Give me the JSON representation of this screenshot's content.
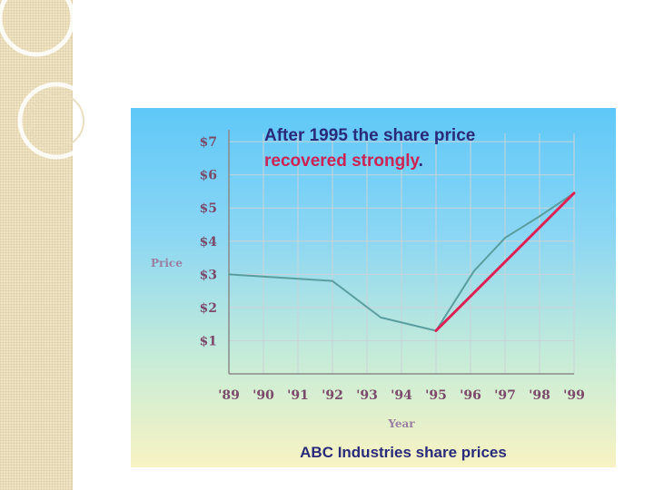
{
  "chart_data": {
    "type": "line",
    "title": [
      "After 1995 the share price",
      "recovered strongly",
      "."
    ],
    "caption": "ABC Industries share prices",
    "xlabel": "Year",
    "ylabel": "Price",
    "x_ticks": [
      "'89",
      "'90",
      "'91",
      "'92",
      "'93",
      "'94",
      "'95",
      "'96",
      "'97",
      "'98",
      "'99"
    ],
    "y_ticks": [
      "$1",
      "$2",
      "$3",
      "$4",
      "$5",
      "$6",
      "$7"
    ],
    "ylim": [
      0,
      7
    ],
    "xlim": [
      1989,
      1999
    ],
    "grid": true,
    "series": [
      {
        "color": "#5a9ea0",
        "points": [
          [
            1989,
            3.0
          ],
          [
            1992,
            2.8
          ],
          [
            1993.4,
            1.7
          ],
          [
            1995,
            1.3
          ],
          [
            1996.1,
            3.1
          ],
          [
            1997,
            4.1
          ],
          [
            1998,
            4.75
          ],
          [
            1999,
            5.45
          ]
        ]
      },
      {
        "color": "#dd2255",
        "points": [
          [
            1995,
            1.3
          ],
          [
            1999,
            5.45
          ]
        ]
      }
    ],
    "colors": {
      "title_main": "#2a2a7a",
      "title_accent": "#cc2255",
      "ticks": "#7b4a6a"
    }
  }
}
